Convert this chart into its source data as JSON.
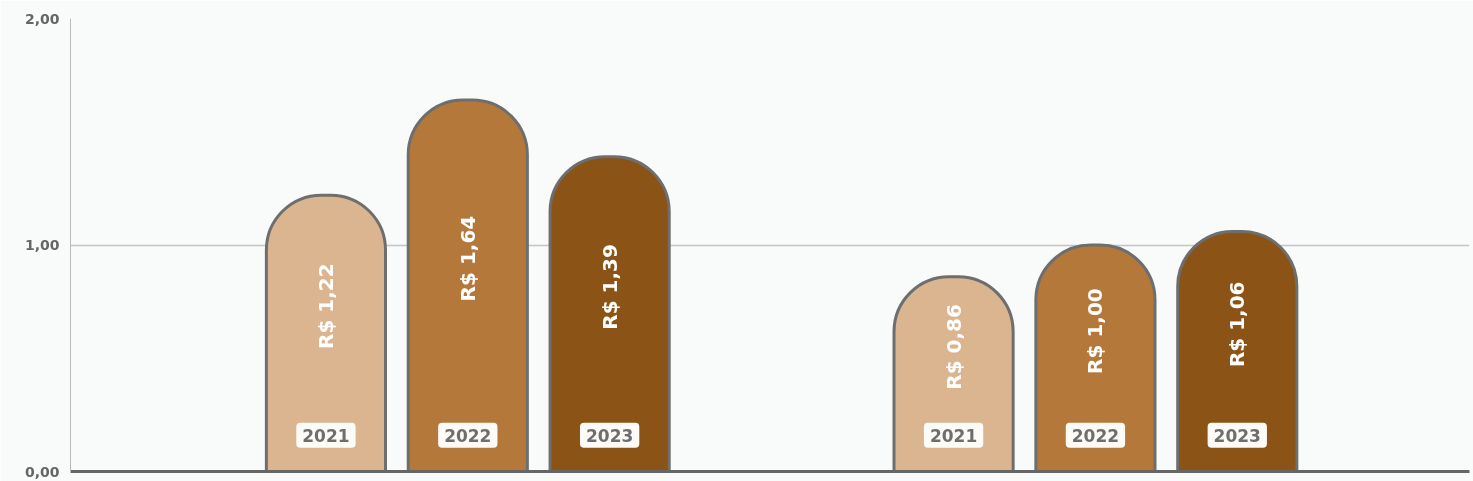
{
  "chart_data": {
    "type": "bar",
    "categories": [
      null,
      null
    ],
    "series": [
      {
        "name": "2021",
        "color": "#dbb590",
        "values": [
          1.22,
          0.86
        ],
        "value_labels": [
          "R$ 1,22",
          "R$ 0,86"
        ]
      },
      {
        "name": "2022",
        "color": "#b5783b",
        "values": [
          1.64,
          1.0
        ],
        "value_labels": [
          "R$ 1,64",
          "R$ 1,00"
        ]
      },
      {
        "name": "2023",
        "color": "#8b5316",
        "values": [
          1.39,
          1.06
        ],
        "value_labels": [
          "R$ 1,39",
          "R$ 1,06"
        ]
      }
    ],
    "ylim": [
      0,
      2
    ],
    "yticks": [
      {
        "value": 0,
        "label": "0,00"
      },
      {
        "value": 1,
        "label": "1,00"
      },
      {
        "value": 2,
        "label": "2,00"
      }
    ],
    "grid": "y",
    "tick_labels": "y"
  }
}
